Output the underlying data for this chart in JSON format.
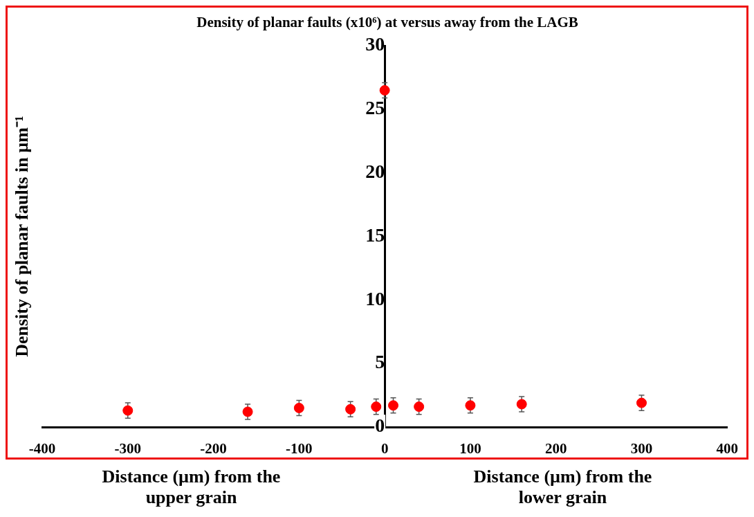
{
  "chart_data": {
    "type": "scatter",
    "title": "Density of planar faults (x10⁶) at versus away from the LAGB",
    "ylabel": "Density of planar faults in µm⁻¹",
    "annotations": [
      "Distance (µm) from the upper grain",
      "Distance (µm) from the lower grain"
    ],
    "x": [
      -300,
      -160,
      -100,
      -40,
      -10,
      0,
      10,
      40,
      100,
      160,
      300
    ],
    "series": [
      {
        "color": "#ff0000",
        "values": [
          1.3,
          1.2,
          1.5,
          1.4,
          1.6,
          26.5,
          1.7,
          1.6,
          1.7,
          1.8,
          1.9
        ],
        "errors": [
          0.6,
          0.6,
          0.6,
          0.6,
          0.6,
          0.6,
          0.6,
          0.6,
          0.6,
          0.6,
          0.6
        ]
      }
    ],
    "xlim": [
      -400,
      400
    ],
    "xticks": [
      -400,
      -300,
      -200,
      -100,
      0,
      100,
      200,
      300,
      400
    ],
    "ylim": [
      0,
      30
    ],
    "yticks": [
      0,
      5,
      10,
      15,
      20,
      25,
      30
    ],
    "grid": false,
    "legend": false,
    "marker": "circle"
  }
}
